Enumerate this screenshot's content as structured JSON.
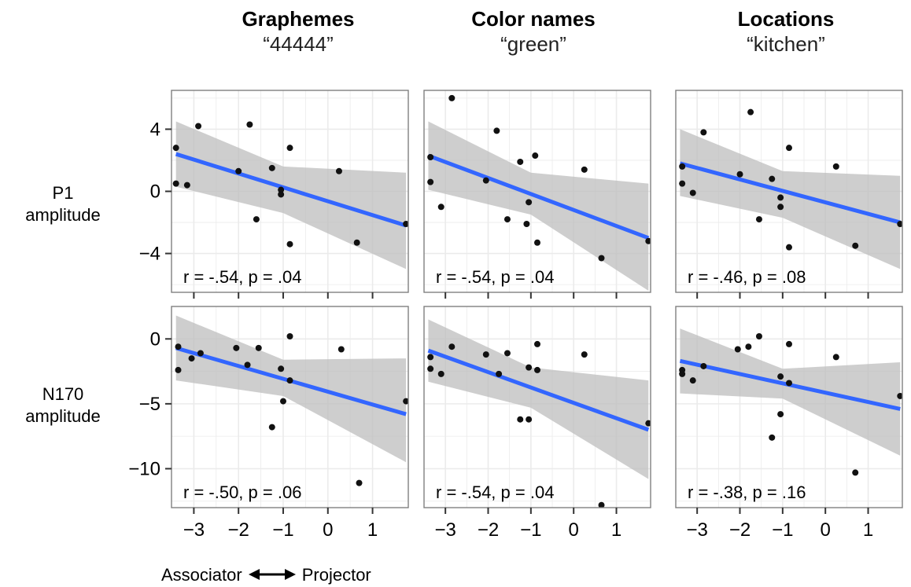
{
  "columns": [
    {
      "title": "Graphemes",
      "subtitle": "“44444”"
    },
    {
      "title": "Color names",
      "subtitle": "“green”"
    },
    {
      "title": "Locations",
      "subtitle": "“kitchen”"
    }
  ],
  "rows": [
    {
      "label_line1": "P1",
      "label_line2": "amplitude"
    },
    {
      "label_line1": "N170",
      "label_line2": "amplitude"
    }
  ],
  "xaxis": {
    "left_label": "Associator",
    "right_label": "Projector",
    "range": [
      -3.5,
      1.8
    ],
    "ticks": [
      -3,
      -2,
      -1,
      0,
      1
    ],
    "tick_labels": [
      "−3",
      "−2",
      "−1",
      "0",
      "1"
    ]
  },
  "yaxis": {
    "P1": {
      "range": [
        -6.5,
        6.5
      ],
      "ticks": [
        -4,
        0,
        4
      ],
      "tick_labels": [
        "−4",
        "0",
        "4"
      ]
    },
    "N170": {
      "range": [
        -13,
        2.5
      ],
      "ticks": [
        -10,
        -5,
        0
      ],
      "tick_labels": [
        "−10",
        "−5",
        "0"
      ]
    }
  },
  "colors": {
    "fit_line": "#3366ff",
    "ribbon": "#bdbdbd",
    "panel_bg": "#ffffff",
    "grid": "#ebebeb",
    "border": "#7f7f7f",
    "points": "#111111"
  },
  "chart_data": [
    {
      "type": "scatter",
      "row": "P1",
      "column": "Graphemes",
      "annotation": "r = -.54, p = .04",
      "fit": {
        "x": [
          -3.4,
          1.75
        ],
        "y": [
          2.4,
          -2.2
        ]
      },
      "ribbon": {
        "x": [
          -3.4,
          -1.0,
          1.75
        ],
        "upper": [
          4.5,
          1.6,
          1.2
        ],
        "lower": [
          0.3,
          -1.4,
          -5.0
        ]
      },
      "points": [
        [
          -3.4,
          2.8
        ],
        [
          -3.4,
          0.5
        ],
        [
          -3.15,
          0.4
        ],
        [
          -2.9,
          4.2
        ],
        [
          -2.0,
          1.3
        ],
        [
          -1.75,
          4.3
        ],
        [
          -1.6,
          -1.8
        ],
        [
          -1.25,
          1.5
        ],
        [
          -1.05,
          0.1
        ],
        [
          -1.05,
          -0.2
        ],
        [
          -0.85,
          2.8
        ],
        [
          -0.85,
          -3.4
        ],
        [
          0.25,
          1.3
        ],
        [
          0.65,
          -3.3
        ],
        [
          1.75,
          -2.1
        ]
      ]
    },
    {
      "type": "scatter",
      "row": "P1",
      "column": "Color names",
      "annotation": "r = -.54, p = .04",
      "fit": {
        "x": [
          -3.4,
          1.75
        ],
        "y": [
          2.3,
          -3.0
        ]
      },
      "ribbon": {
        "x": [
          -3.4,
          -1.0,
          1.75
        ],
        "upper": [
          4.5,
          1.2,
          0.5
        ],
        "lower": [
          0.1,
          -1.5,
          -6.4
        ]
      },
      "points": [
        [
          -3.35,
          2.2
        ],
        [
          -3.35,
          0.6
        ],
        [
          -3.1,
          -1.0
        ],
        [
          -2.85,
          6.0
        ],
        [
          -2.05,
          0.7
        ],
        [
          -1.8,
          3.9
        ],
        [
          -1.55,
          -1.8
        ],
        [
          -1.25,
          1.9
        ],
        [
          -1.1,
          -2.1
        ],
        [
          -1.05,
          -0.7
        ],
        [
          -0.9,
          2.3
        ],
        [
          -0.85,
          -3.3
        ],
        [
          0.25,
          1.4
        ],
        [
          0.65,
          -4.3
        ],
        [
          1.75,
          -3.2
        ]
      ]
    },
    {
      "type": "scatter",
      "row": "P1",
      "column": "Locations",
      "annotation": "r = -.46, p = .08",
      "fit": {
        "x": [
          -3.4,
          1.75
        ],
        "y": [
          1.8,
          -2.0
        ]
      },
      "ribbon": {
        "x": [
          -3.4,
          -1.0,
          1.75
        ],
        "upper": [
          4.0,
          1.3,
          1.0
        ],
        "lower": [
          -0.3,
          -1.7,
          -5.0
        ]
      },
      "points": [
        [
          -3.35,
          1.6
        ],
        [
          -3.35,
          0.5
        ],
        [
          -3.1,
          -0.1
        ],
        [
          -2.85,
          3.8
        ],
        [
          -2.0,
          1.1
        ],
        [
          -1.75,
          5.1
        ],
        [
          -1.55,
          -1.8
        ],
        [
          -1.25,
          0.8
        ],
        [
          -1.05,
          -0.4
        ],
        [
          -1.05,
          -1.0
        ],
        [
          -0.85,
          2.8
        ],
        [
          -0.85,
          -3.6
        ],
        [
          0.25,
          1.6
        ],
        [
          0.7,
          -3.5
        ],
        [
          1.75,
          -2.1
        ]
      ]
    },
    {
      "type": "scatter",
      "row": "N170",
      "column": "Graphemes",
      "annotation": "r = -.50, p = .06",
      "fit": {
        "x": [
          -3.4,
          1.75
        ],
        "y": [
          -0.7,
          -5.8
        ]
      },
      "ribbon": {
        "x": [
          -3.4,
          -1.0,
          1.75
        ],
        "upper": [
          1.8,
          -1.6,
          -1.5
        ],
        "lower": [
          -3.2,
          -4.4,
          -9.5
        ]
      },
      "points": [
        [
          -3.35,
          -0.6
        ],
        [
          -3.35,
          -2.4
        ],
        [
          -3.05,
          -1.5
        ],
        [
          -2.85,
          -1.1
        ],
        [
          -2.05,
          -0.7
        ],
        [
          -1.8,
          -2.0
        ],
        [
          -1.55,
          -0.7
        ],
        [
          -1.25,
          -6.8
        ],
        [
          -1.05,
          -2.3
        ],
        [
          -1.0,
          -4.8
        ],
        [
          -0.85,
          0.2
        ],
        [
          -0.85,
          -3.2
        ],
        [
          0.3,
          -0.8
        ],
        [
          0.7,
          -11.1
        ],
        [
          1.75,
          -4.8
        ]
      ]
    },
    {
      "type": "scatter",
      "row": "N170",
      "column": "Color names",
      "annotation": "r = -.54, p = .04",
      "fit": {
        "x": [
          -3.4,
          1.75
        ],
        "y": [
          -0.9,
          -7.0
        ]
      },
      "ribbon": {
        "x": [
          -3.4,
          -1.0,
          1.75
        ],
        "upper": [
          1.5,
          -2.2,
          -3.2
        ],
        "lower": [
          -3.3,
          -5.3,
          -10.8
        ]
      },
      "points": [
        [
          -3.35,
          -1.4
        ],
        [
          -3.35,
          -2.3
        ],
        [
          -3.1,
          -2.7
        ],
        [
          -2.85,
          -0.6
        ],
        [
          -2.05,
          -1.2
        ],
        [
          -1.75,
          -2.7
        ],
        [
          -1.55,
          -1.1
        ],
        [
          -1.25,
          -6.2
        ],
        [
          -1.05,
          -6.2
        ],
        [
          -1.05,
          -2.2
        ],
        [
          -0.85,
          -0.4
        ],
        [
          -0.85,
          -2.4
        ],
        [
          0.25,
          -1.2
        ],
        [
          0.65,
          -12.8
        ],
        [
          1.75,
          -6.5
        ]
      ]
    },
    {
      "type": "scatter",
      "row": "N170",
      "column": "Locations",
      "annotation": "r = -.38, p = .16",
      "fit": {
        "x": [
          -3.4,
          1.75
        ],
        "y": [
          -1.7,
          -5.4
        ]
      },
      "ribbon": {
        "x": [
          -3.4,
          -1.0,
          1.75
        ],
        "upper": [
          0.8,
          -2.3,
          -1.8
        ],
        "lower": [
          -4.2,
          -4.6,
          -9.0
        ]
      },
      "points": [
        [
          -3.35,
          -2.4
        ],
        [
          -3.35,
          -2.7
        ],
        [
          -3.1,
          -3.2
        ],
        [
          -2.85,
          -2.1
        ],
        [
          -2.05,
          -0.8
        ],
        [
          -1.8,
          -0.6
        ],
        [
          -1.55,
          0.2
        ],
        [
          -1.25,
          -7.6
        ],
        [
          -1.05,
          -2.9
        ],
        [
          -1.05,
          -5.8
        ],
        [
          -0.85,
          -0.4
        ],
        [
          -0.85,
          -3.4
        ],
        [
          0.25,
          -1.4
        ],
        [
          0.7,
          -10.3
        ],
        [
          1.75,
          -4.4
        ]
      ]
    }
  ]
}
